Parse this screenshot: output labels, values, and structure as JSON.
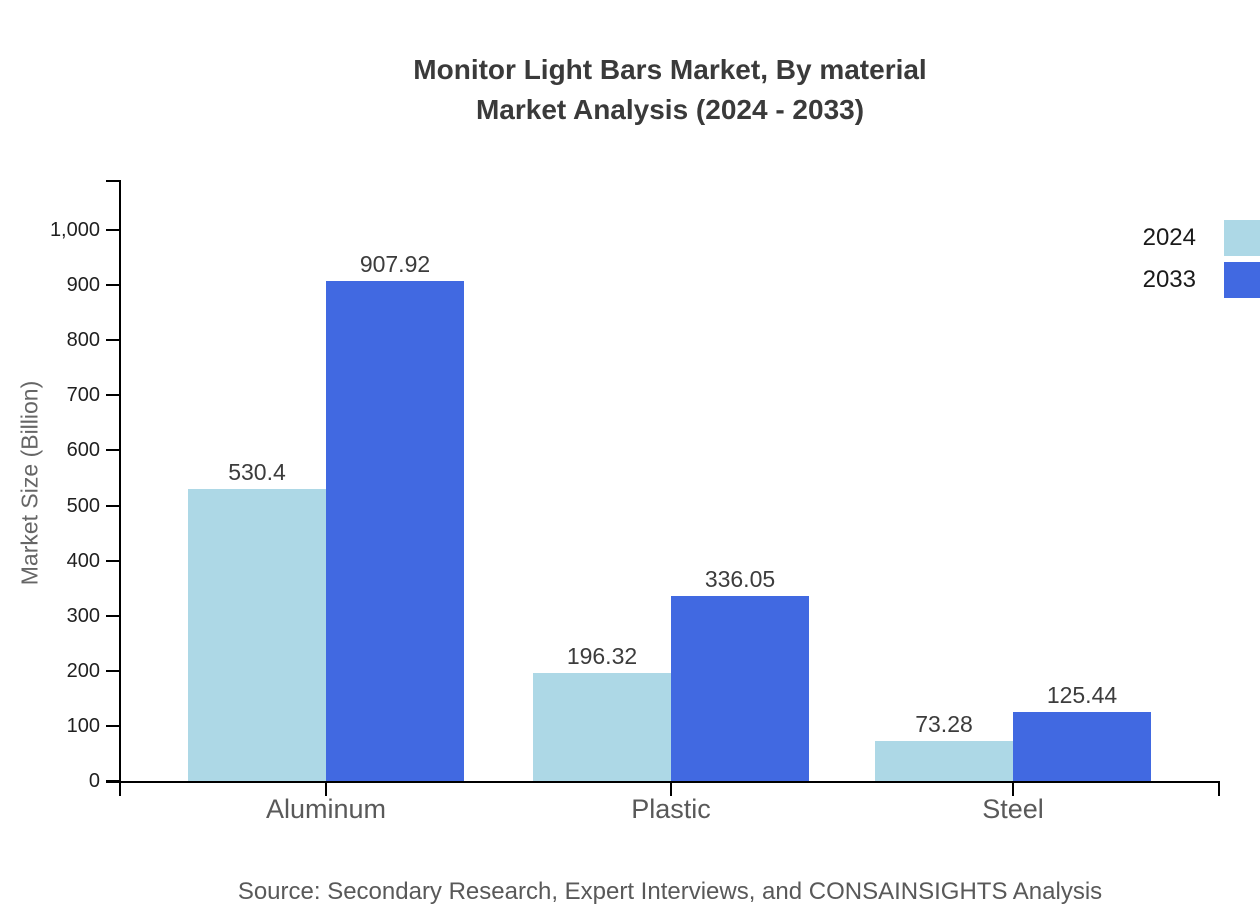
{
  "title": {
    "line1": "Monitor Light Bars Market, By material",
    "line2": "Market Analysis (2024 - 2033)"
  },
  "source": "Source: Secondary Research, Expert Interviews, and CONSAINSIGHTS Analysis",
  "chart_data": {
    "type": "bar",
    "title": "Monitor Light Bars Market, By material Market Analysis (2024 - 2033)",
    "categories": [
      "Aluminum",
      "Plastic",
      "Steel"
    ],
    "series": [
      {
        "name": "2024",
        "color": "#add8e6",
        "values": [
          530.4,
          196.32,
          73.28
        ],
        "labels": [
          "530.4",
          "196.32",
          "73.28"
        ]
      },
      {
        "name": "2033",
        "color": "#4169e1",
        "values": [
          907.92,
          336.05,
          125.44
        ],
        "labels": [
          "907.92",
          "336.05",
          "125.44"
        ]
      }
    ],
    "xlabel": "",
    "ylabel": "Market Size (Billion)",
    "ylim": [
      0,
      1090
    ],
    "yticks": [
      {
        "value": 0,
        "label": "0"
      },
      {
        "value": 100,
        "label": "100"
      },
      {
        "value": 200,
        "label": "200"
      },
      {
        "value": 300,
        "label": "300"
      },
      {
        "value": 400,
        "label": "400"
      },
      {
        "value": 500,
        "label": "500"
      },
      {
        "value": 600,
        "label": "600"
      },
      {
        "value": 700,
        "label": "700"
      },
      {
        "value": 800,
        "label": "800"
      },
      {
        "value": 900,
        "label": "900"
      },
      {
        "value": 1000,
        "label": "1,000"
      }
    ],
    "grid": false,
    "legend_position": "top-right"
  }
}
